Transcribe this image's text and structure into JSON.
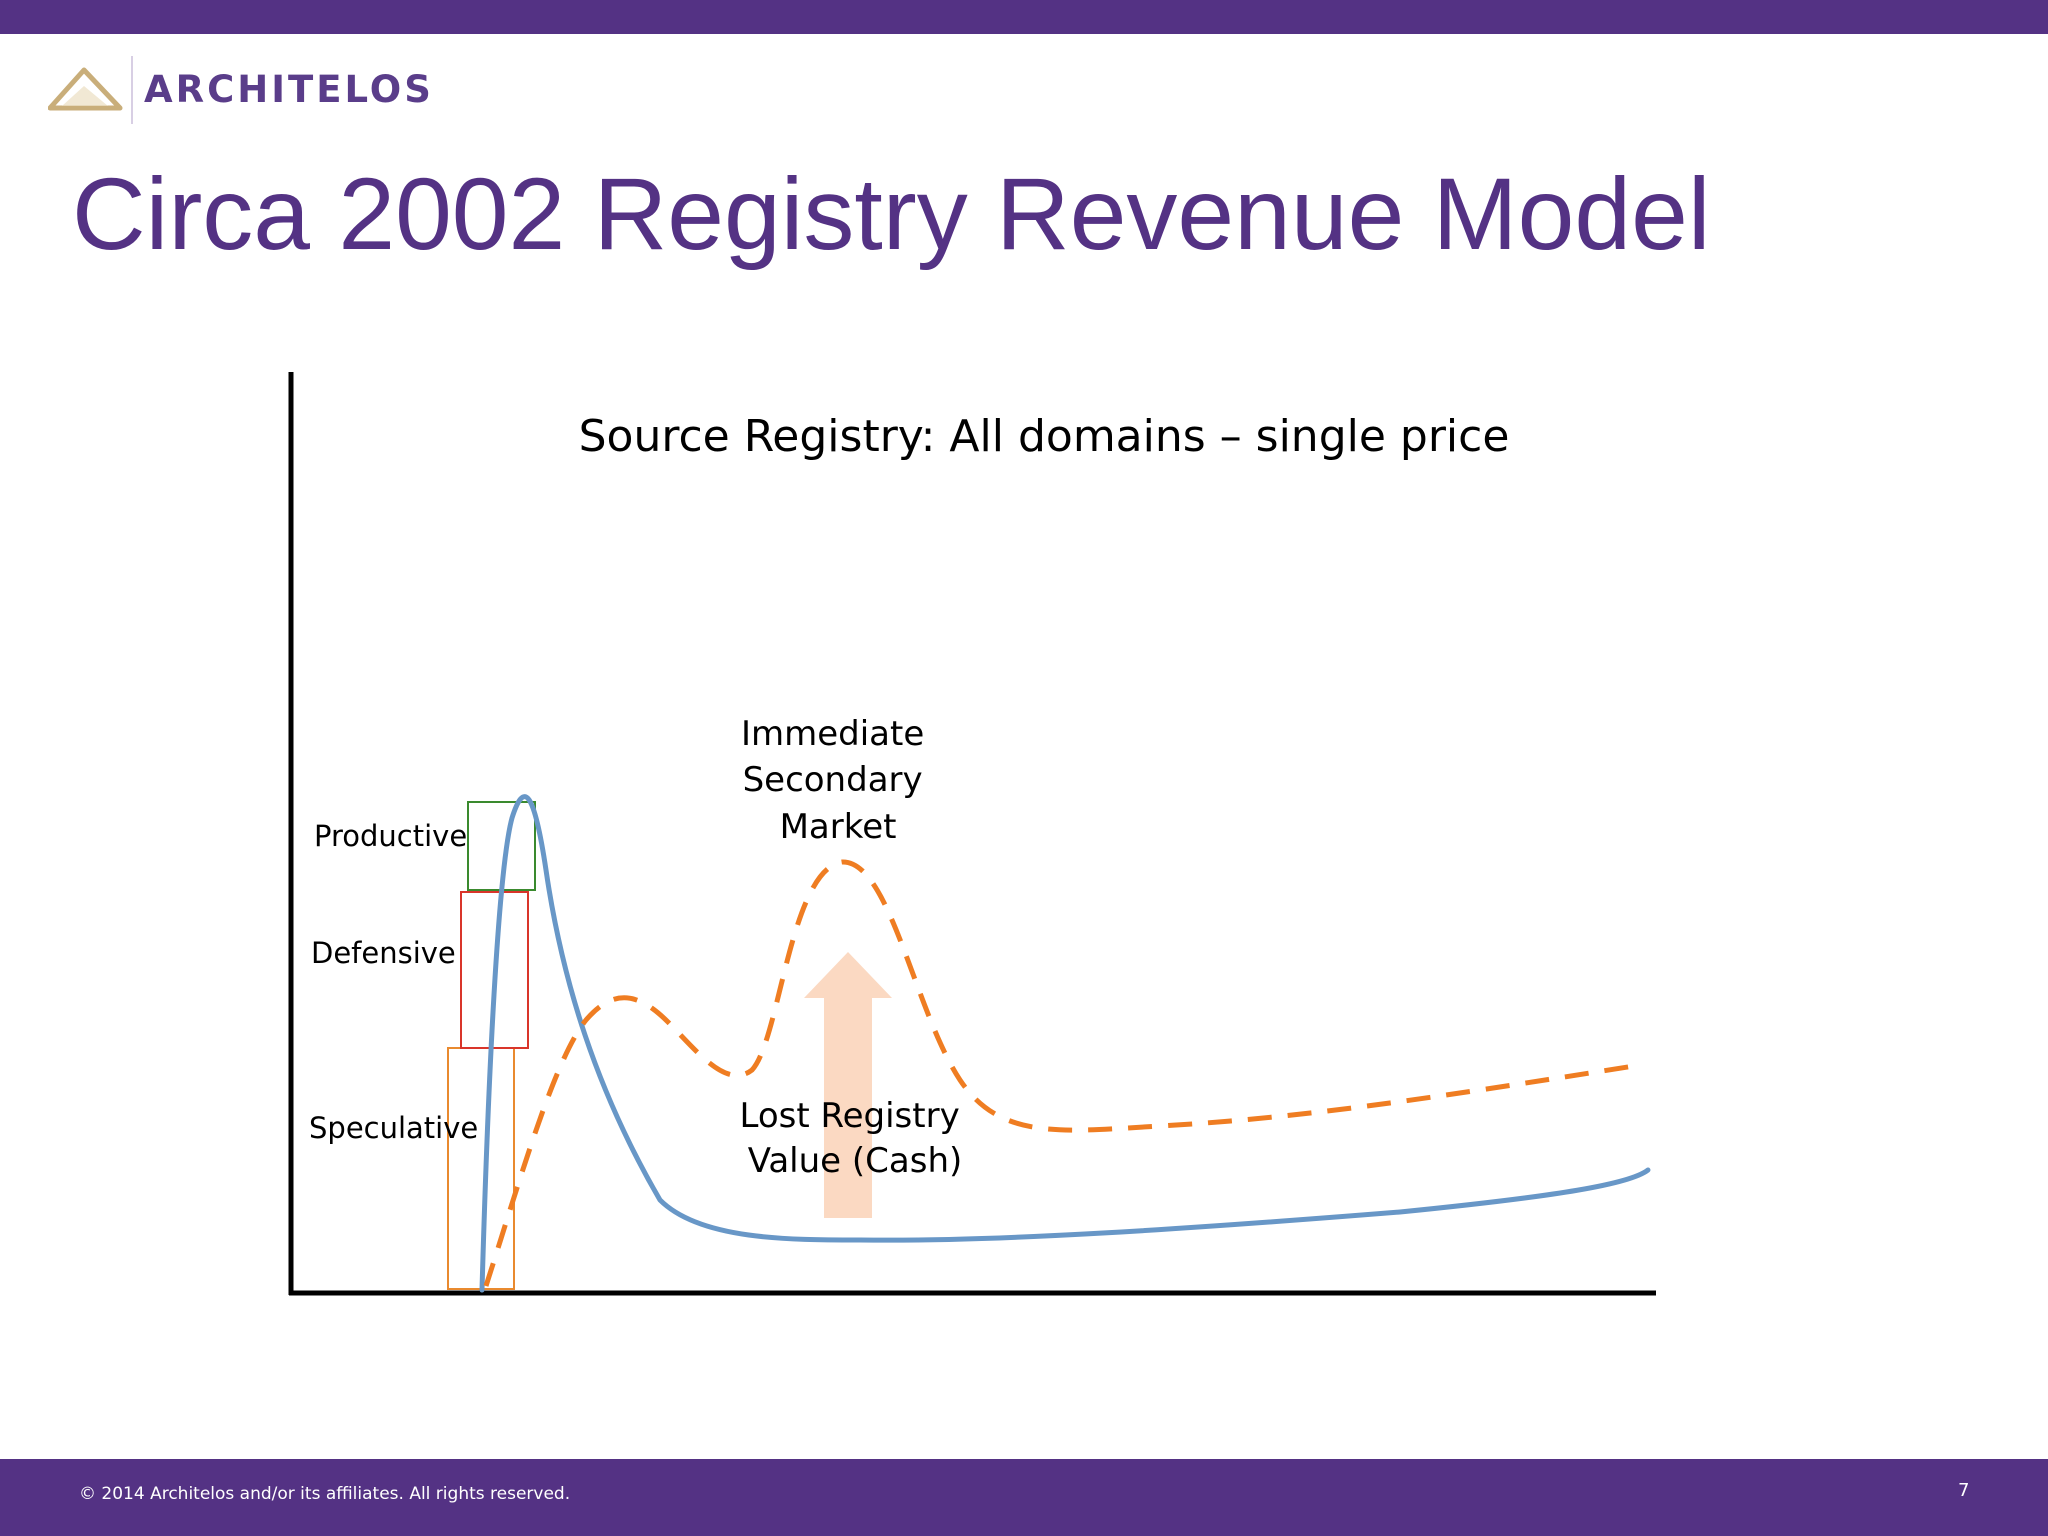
{
  "header": {
    "brand_name": "ARCHITELOS",
    "logo_icon": "triangle-logo-icon"
  },
  "slide": {
    "title": "Circa 2002 Registry Revenue Model",
    "page_number": "7"
  },
  "footer": {
    "copyright": "© 2014 Architelos and/or its affiliates. All rights reserved."
  },
  "diagram": {
    "heading": "Source Registry:  All domains – single price",
    "segments": {
      "productive": "Productive",
      "defensive": "Defensive",
      "speculative": "Speculative"
    },
    "peak_label": [
      "Immediate",
      "Secondary",
      "Market"
    ],
    "arrow_label": [
      "Lost Registry",
      "Value (Cash)"
    ],
    "colors": {
      "brand_purple": "#543284",
      "primary_curve": "#6897c7",
      "secondary_curve": "#ef7d22",
      "productive_box": "#3a8a2e",
      "defensive_box": "#d9352a",
      "speculative_box": "#e98a2f",
      "arrow_fill": "#fbd7bf",
      "axis": "#000000"
    }
  }
}
